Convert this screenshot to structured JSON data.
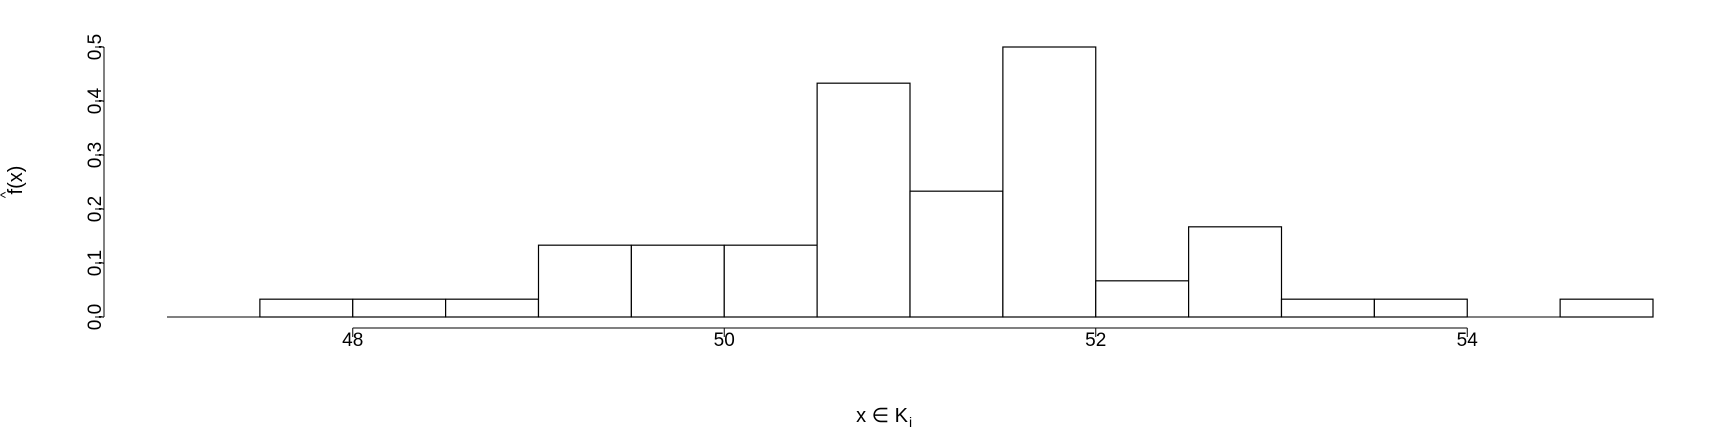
{
  "chart_data": {
    "type": "bar",
    "subtype": "histogram",
    "title": "",
    "xlabel": "x ∈ K",
    "xlabel_subscript": "i",
    "ylabel": "f(x)",
    "ylabel_accent": "^",
    "xlim": [
      47.0,
      55.0
    ],
    "ylim": [
      0.0,
      0.5
    ],
    "x_ticks": [
      48,
      50,
      52,
      54
    ],
    "x_tick_labels": [
      "48",
      "50",
      "52",
      "54"
    ],
    "y_ticks": [
      0.0,
      0.1,
      0.2,
      0.3,
      0.4,
      0.5
    ],
    "y_tick_labels": [
      "0,0",
      "0,1",
      "0,2",
      "0,3",
      "0,4",
      "0,5"
    ],
    "grid": false,
    "legend": "none",
    "bin_edges": [
      47.5,
      48.0,
      48.5,
      49.0,
      49.5,
      50.0,
      50.5,
      51.0,
      51.5,
      52.0,
      52.5,
      53.0,
      53.5,
      54.0,
      54.5,
      55.0
    ],
    "values": [
      0.033,
      0.033,
      0.033,
      0.133,
      0.133,
      0.133,
      0.433,
      0.233,
      0.5,
      0.067,
      0.167,
      0.033,
      0.033,
      0.0,
      0.033
    ],
    "bar_fill": "#ffffff",
    "bar_stroke": "#000000"
  }
}
